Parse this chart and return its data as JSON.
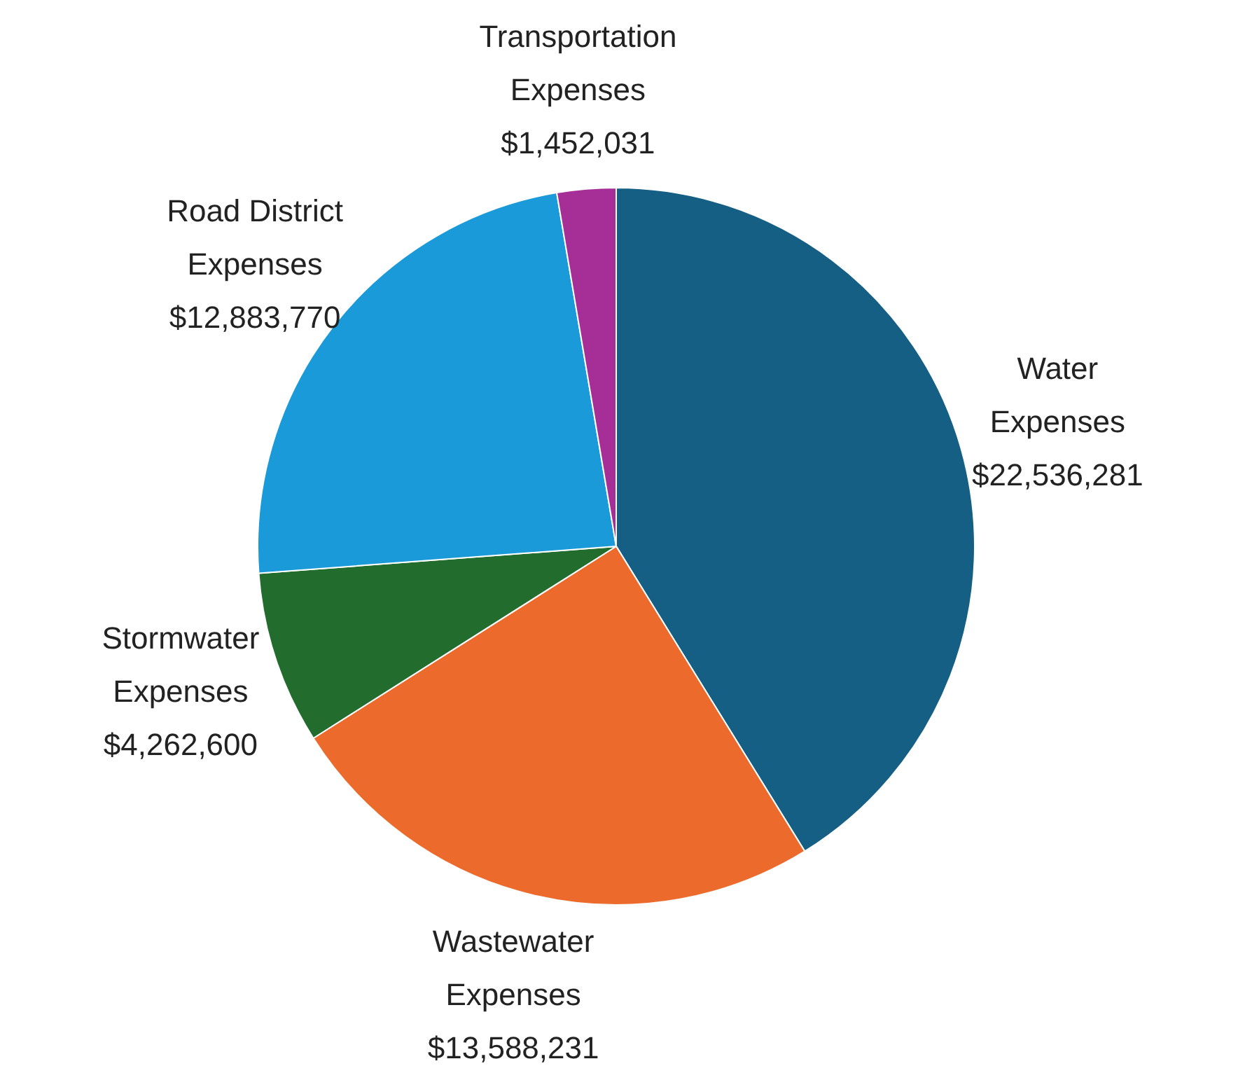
{
  "chart_data": {
    "type": "pie",
    "categories": [
      "Water Expenses",
      "Wastewater Expenses",
      "Stormwater Expenses",
      "Road District Expenses",
      "Transportation Expenses"
    ],
    "values": [
      22536281,
      13588231,
      4262600,
      12883770,
      1452031
    ],
    "value_labels": [
      "$22,536,281",
      "$13,588,231",
      "$4,262,600",
      "$12,883,770",
      "$1,452,031"
    ],
    "colors": [
      "#155f85",
      "#ec6a2b",
      "#226c2e",
      "#1a9ad8",
      "#a52f97"
    ],
    "legend": false
  }
}
